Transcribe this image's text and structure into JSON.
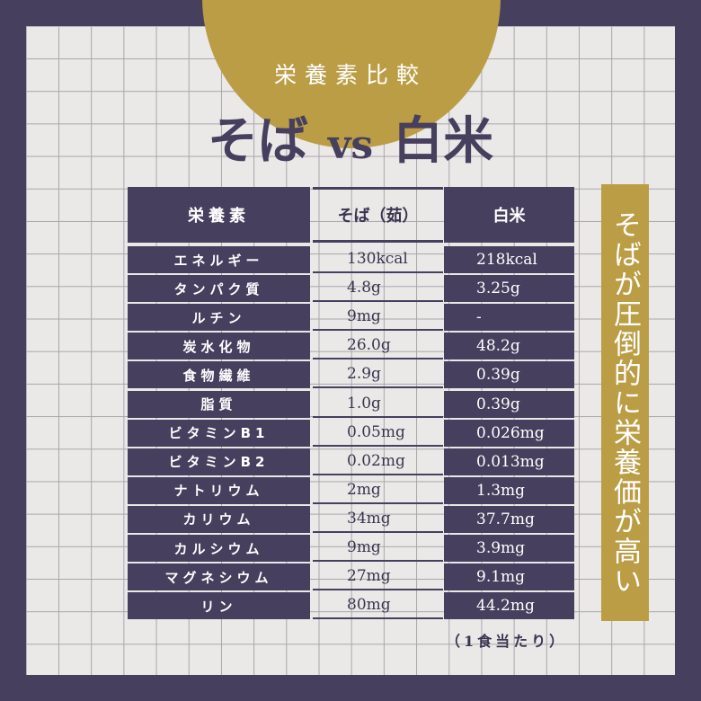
{
  "header": {
    "subtitle": "栄養素比較",
    "title_left": "そば",
    "title_vs": "vs",
    "title_right": "白米"
  },
  "table": {
    "columns": [
      "栄養素",
      "そば（茹）",
      "白米"
    ],
    "rows": [
      [
        "エネルギー",
        "130kcal",
        "218kcal"
      ],
      [
        "タンパク質",
        "4.8g",
        "3.25g"
      ],
      [
        "ルチン",
        "9mg",
        "-"
      ],
      [
        "炭水化物",
        "26.0g",
        "48.2g"
      ],
      [
        "食物繊維",
        "2.9g",
        "0.39g"
      ],
      [
        "脂質",
        "1.0g",
        "0.39g"
      ],
      [
        "ビタミンB1",
        "0.05mg",
        "0.026mg"
      ],
      [
        "ビタミンB2",
        "0.02mg",
        "0.013mg"
      ],
      [
        "ナトリウム",
        "2mg",
        "1.3mg"
      ],
      [
        "カリウム",
        "34mg",
        "37.7mg"
      ],
      [
        "カルシウム",
        "9mg",
        "3.9mg"
      ],
      [
        "マグネシウム",
        "27mg",
        "9.1mg"
      ],
      [
        "リン",
        "80mg",
        "44.2mg"
      ]
    ]
  },
  "banner": "そばが圧倒的に栄養価が高い",
  "note": "（1食当たり）",
  "colors": {
    "frame": "#463f5e",
    "gold": "#bb9d46",
    "panel": "#eae9e7"
  }
}
